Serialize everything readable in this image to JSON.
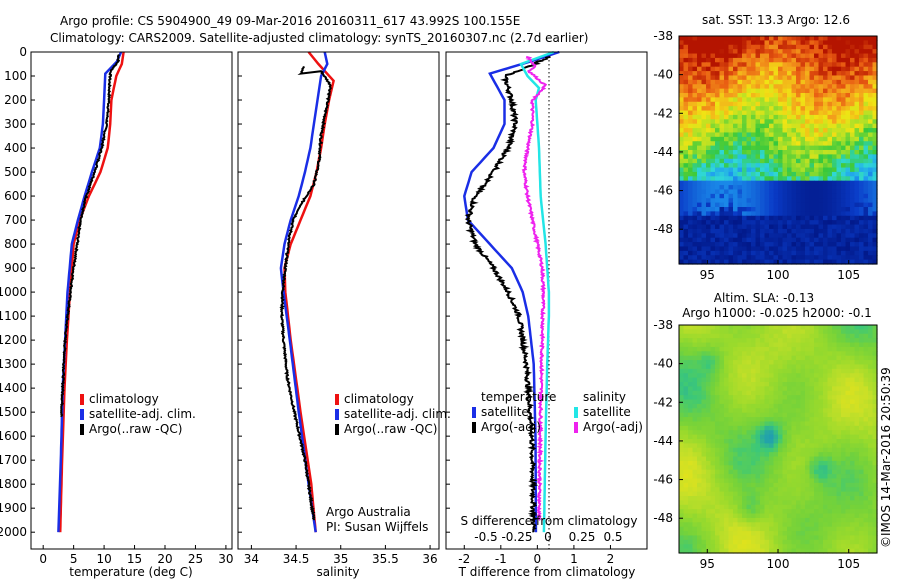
{
  "header": {
    "line1": "Argo profile: CS 5904900_49 09-Mar-2016 20160311_617 43.992S 100.155E",
    "line2": "Climatology: CARS2009. Satellite-adjusted climatology: synTS_20160307.nc (2.7d earlier)"
  },
  "credits": {
    "org": "Argo Australia",
    "pi": "PI: Susan Wijffels",
    "stamp": "©IMOS 14-Mar-2016 20:50:39"
  },
  "colors": {
    "climatology": "#ee1111",
    "satellite": "#1a2ee6",
    "argo": "#000000",
    "sal_satellite": "#22e6e6",
    "sal_argo": "#ee22ee"
  },
  "chart_data": [
    {
      "type": "line",
      "id": "temperature",
      "xlabel": "temperature (deg C)",
      "ylabel": "",
      "xlim": [
        -2,
        31
      ],
      "ylim": [
        2070,
        0
      ],
      "xticks": [
        "0",
        "5",
        "10",
        "15",
        "20",
        "25",
        "30"
      ],
      "xtick_values": [
        0,
        5,
        10,
        15,
        20,
        25,
        30
      ],
      "yticks": [
        "0",
        "100",
        "200",
        "300",
        "400",
        "500",
        "600",
        "700",
        "800",
        "900",
        "1000",
        "1100",
        "1200",
        "1300",
        "1400",
        "1500",
        "1600",
        "1700",
        "1800",
        "1900",
        "2000"
      ],
      "ytick_values": [
        0,
        100,
        200,
        300,
        400,
        500,
        600,
        700,
        800,
        900,
        1000,
        1100,
        1200,
        1300,
        1400,
        1500,
        1600,
        1700,
        1800,
        1900,
        2000
      ],
      "legend": [
        "climatology",
        "satellite-adj. clim.",
        "Argo(..raw -QC)"
      ],
      "legend_position": "lower-right",
      "series": [
        {
          "name": "climatology",
          "color": "#ee1111",
          "x": [
            13.2,
            12.9,
            12.0,
            11.2,
            11.0,
            10.6,
            9.4,
            7.5,
            6.0,
            5.0,
            4.4,
            3.9,
            3.5,
            3.1,
            2.8
          ],
          "y": [
            0,
            50,
            100,
            200,
            300,
            400,
            500,
            600,
            700,
            800,
            1000,
            1200,
            1400,
            1700,
            2000
          ]
        },
        {
          "name": "satellite-adj. clim.",
          "color": "#1a2ee6",
          "x": [
            12.8,
            12.1,
            10.2,
            10.0,
            9.8,
            9.3,
            8.0,
            6.8,
            5.7,
            4.7,
            4.0,
            3.6,
            3.2,
            2.9,
            2.5
          ],
          "y": [
            0,
            40,
            90,
            200,
            300,
            400,
            500,
            600,
            700,
            800,
            1000,
            1200,
            1400,
            1700,
            2000
          ]
        },
        {
          "name": "Argo(..raw -QC)",
          "color": "#000000",
          "x": [
            12.4,
            12.3,
            11.1,
            10.9,
            10.8,
            10.4,
            9.6,
            8.5,
            7.1,
            6.1,
            5.6,
            5.0,
            4.5,
            4.0,
            3.6,
            3.3,
            3.0
          ],
          "y": [
            10,
            40,
            80,
            120,
            200,
            300,
            400,
            500,
            600,
            700,
            800,
            900,
            1000,
            1100,
            1200,
            1350,
            1520
          ]
        }
      ]
    },
    {
      "type": "line",
      "id": "salinity",
      "xlabel": "salinity",
      "xlim": [
        33.85,
        36.1
      ],
      "ylim": [
        2070,
        0
      ],
      "xticks": [
        "34",
        "34.5",
        "35",
        "35.5",
        "36"
      ],
      "xtick_values": [
        34,
        34.5,
        35,
        35.5,
        36
      ],
      "legend": [
        "climatology",
        "satellite-adj. clim.",
        "Argo(..raw -QC)"
      ],
      "legend_position": "lower-right",
      "series": [
        {
          "name": "climatology",
          "color": "#ee1111",
          "x": [
            34.64,
            34.75,
            34.92,
            34.87,
            34.82,
            34.78,
            34.73,
            34.66,
            34.55,
            34.44,
            34.37,
            34.38,
            34.44,
            34.55,
            34.67,
            34.72
          ],
          "y": [
            0,
            50,
            120,
            200,
            300,
            400,
            500,
            600,
            700,
            800,
            900,
            1000,
            1200,
            1500,
            1800,
            2000
          ]
        },
        {
          "name": "satellite-adj. clim.",
          "color": "#1a2ee6",
          "x": [
            34.82,
            34.85,
            34.78,
            34.74,
            34.7,
            34.66,
            34.6,
            34.53,
            34.44,
            34.37,
            34.33,
            34.36,
            34.43,
            34.53,
            34.64,
            34.72
          ],
          "y": [
            0,
            50,
            100,
            200,
            300,
            400,
            500,
            600,
            700,
            800,
            900,
            1000,
            1200,
            1500,
            1800,
            2000
          ]
        },
        {
          "name": "Argo(..raw -QC)",
          "color": "#000000",
          "x": [
            34.58,
            34.56,
            34.78,
            34.89,
            34.83,
            34.78,
            34.76,
            34.7,
            34.58,
            34.47,
            34.42,
            34.38,
            34.35,
            34.34,
            34.36,
            34.4,
            34.48,
            34.6,
            34.7
          ],
          "y": [
            60,
            90,
            80,
            140,
            250,
            350,
            450,
            550,
            620,
            700,
            780,
            900,
            1000,
            1100,
            1200,
            1350,
            1500,
            1700,
            1950
          ]
        }
      ]
    },
    {
      "type": "line",
      "id": "differences",
      "xlabel": "T difference from climatology",
      "x2label": "S difference from climatology",
      "xlim": [
        -2.5,
        3
      ],
      "ylim": [
        2070,
        0
      ],
      "xticks": [
        "-2",
        "-1",
        "0",
        "1",
        "2"
      ],
      "xtick_values": [
        -2,
        -1,
        0,
        1,
        2
      ],
      "x2ticks": [
        "-0.5",
        "-0.25",
        "0",
        "0.25",
        "0.5"
      ],
      "x2tick_values": [
        -0.5,
        -0.25,
        0,
        0.25,
        0.5
      ],
      "legend_titles": [
        "temperature",
        "salinity"
      ],
      "legend": [
        "satellite",
        "Argo(-adj)",
        "satellite",
        "Argo(-adj)"
      ],
      "legend_position": "lower-center",
      "series": [
        {
          "name": "temperature satellite",
          "color": "#1a2ee6",
          "x": [
            0.6,
            -0.2,
            -1.3,
            -0.9,
            -0.9,
            -1.2,
            -1.8,
            -2.0,
            -1.9,
            -1.3,
            -0.7,
            -0.4,
            -0.25,
            -0.1,
            -0.05,
            -0.04
          ],
          "y": [
            0,
            40,
            90,
            200,
            300,
            400,
            500,
            600,
            700,
            800,
            900,
            1000,
            1100,
            1300,
            1600,
            2000
          ]
        },
        {
          "name": "temperature Argo(-adj)",
          "color": "#000000",
          "x": [
            0.3,
            -0.2,
            -0.9,
            -0.7,
            -0.6,
            -0.8,
            -1.2,
            -1.7,
            -1.9,
            -1.7,
            -1.2,
            -0.8,
            -0.5,
            -0.3,
            -0.15,
            -0.1
          ],
          "y": [
            20,
            60,
            100,
            200,
            300,
            400,
            500,
            600,
            700,
            800,
            900,
            1000,
            1100,
            1300,
            1600,
            2000
          ]
        },
        {
          "name": "salinity satellite",
          "color": "#22e6e6",
          "x": [
            0.5,
            -0.5,
            -0.3,
            0.05,
            -0.05,
            0.0,
            0.05,
            0.1,
            0.25,
            0.35,
            0.35,
            0.3,
            0.25,
            0.2
          ],
          "y": [
            0,
            50,
            100,
            150,
            200,
            300,
            400,
            600,
            800,
            1000,
            1100,
            1300,
            1600,
            2000
          ]
        },
        {
          "name": "salinity Argo(-adj)",
          "color": "#ee22ee",
          "x": [
            -0.3,
            -0.05,
            -0.25,
            0.25,
            -0.15,
            -0.15,
            -0.3,
            -0.4,
            -0.3,
            -0.15,
            0.0,
            0.15,
            0.18,
            0.1,
            0.05
          ],
          "y": [
            20,
            60,
            80,
            140,
            200,
            300,
            400,
            500,
            600,
            700,
            800,
            900,
            1000,
            1500,
            1950
          ]
        }
      ]
    },
    {
      "type": "heatmap",
      "id": "sst_map",
      "title": "sat. SST: 13.3  Argo: 12.6",
      "xlim": [
        93,
        107
      ],
      "ylim": [
        -49.8,
        -38
      ],
      "xticks": [
        "95",
        "100",
        "105"
      ],
      "xtick_values": [
        95,
        100,
        105
      ],
      "yticks": [
        "-38",
        "-40",
        "-42",
        "-44",
        "-46",
        "-48"
      ],
      "ytick_values": [
        -38,
        -40,
        -42,
        -44,
        -46,
        -48
      ],
      "colors": [
        "#00107a",
        "#0a3cc8",
        "#1e9bf0",
        "#2fd7d7",
        "#38c83c",
        "#a6e02a",
        "#f0e414",
        "#f4a21c",
        "#e85a12",
        "#b41400"
      ]
    },
    {
      "type": "heatmap",
      "id": "sla_map",
      "title": "Altim. SLA: -0.13",
      "subtitle": "Argo h1000: -0.025  h2000: -0.1",
      "xlim": [
        93,
        107
      ],
      "ylim": [
        -49.8,
        -38
      ],
      "xticks": [
        "95",
        "100",
        "105"
      ],
      "xtick_values": [
        95,
        100,
        105
      ],
      "yticks": [
        "-38",
        "-40",
        "-42",
        "-44",
        "-46",
        "-48"
      ],
      "ytick_values": [
        -38,
        -40,
        -42,
        -44,
        -46,
        -48
      ],
      "colors": [
        "#1e9bb4",
        "#3cc878",
        "#74d23a",
        "#9ada2c",
        "#c8e028",
        "#f0e414",
        "#f4a21c"
      ]
    }
  ]
}
